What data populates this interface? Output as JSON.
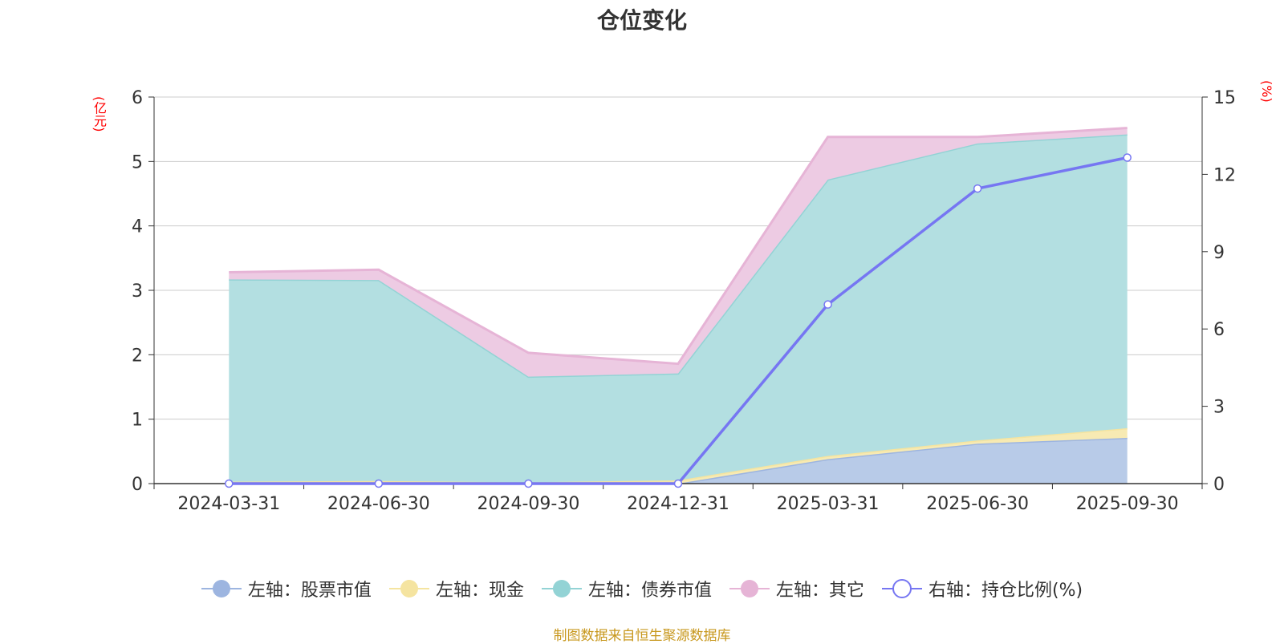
{
  "chart_data": {
    "type": "area",
    "title": "仓位变化",
    "ylabel_left": "(亿元)",
    "ylabel_right": "(%)",
    "categories": [
      "2024-03-31",
      "2024-06-30",
      "2024-09-30",
      "2024-12-31",
      "2025-03-31",
      "2025-06-30",
      "2025-09-30"
    ],
    "ylim_left": [
      0,
      6
    ],
    "yticks_left": [
      0,
      1,
      2,
      3,
      4,
      5,
      6
    ],
    "ylim_right": [
      0,
      15
    ],
    "yticks_right": [
      0,
      3,
      6,
      9,
      12,
      15
    ],
    "grid": true,
    "stacked": true,
    "legend_position": "bottom",
    "series": [
      {
        "name": "左轴：股票市值",
        "axis": "left",
        "type": "area",
        "color": "#9db5e0",
        "fill": "#b8cbe8",
        "values": [
          0,
          0,
          0,
          0,
          0.38,
          0.62,
          0.71
        ]
      },
      {
        "name": "左轴：现金",
        "axis": "left",
        "type": "area",
        "color": "#f5e4a0",
        "fill": "#f7eab3",
        "values": [
          0.03,
          0.04,
          0.02,
          0.05,
          0.05,
          0.05,
          0.15
        ]
      },
      {
        "name": "左轴：债券市值",
        "axis": "left",
        "type": "area",
        "color": "#93d3d5",
        "fill": "#b3dfe1",
        "values": [
          3.14,
          3.12,
          1.64,
          1.66,
          4.29,
          4.61,
          4.56
        ]
      },
      {
        "name": "左轴：其它",
        "axis": "left",
        "type": "area",
        "color": "#e6b4d6",
        "fill": "#edcbe3",
        "values": [
          0.11,
          0.16,
          0.37,
          0.15,
          0.66,
          0.1,
          0.1
        ]
      },
      {
        "name": "右轴：持仓比例(%)",
        "axis": "right",
        "type": "line",
        "color": "#7676f2",
        "values": [
          0,
          0,
          0,
          0,
          6.95,
          11.45,
          12.65
        ]
      }
    ]
  },
  "source_note": "制图数据来自恒生聚源数据库"
}
